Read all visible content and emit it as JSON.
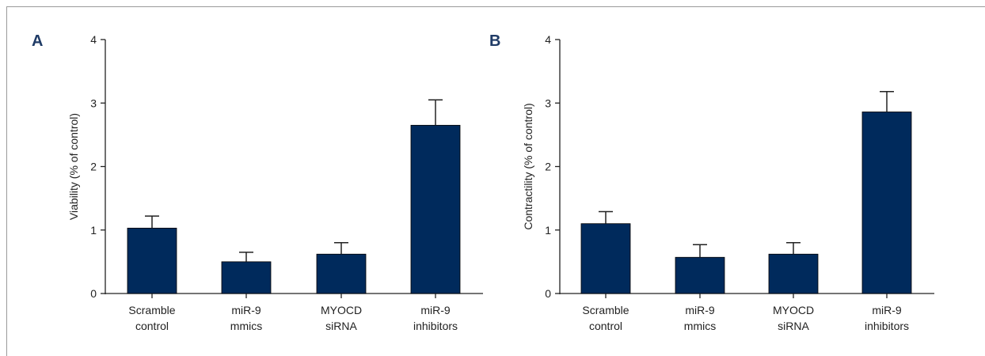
{
  "colors": {
    "bar": "#002a5c",
    "axis": "#222222",
    "panel_letter": "#1f3b66"
  },
  "chart_data": [
    {
      "type": "bar",
      "panel": "A",
      "ylabel": "Viability (% of control)",
      "ylim": [
        0,
        4
      ],
      "yticks": [
        "0",
        "1",
        "2",
        "3",
        "4"
      ],
      "categories": [
        [
          "Scramble",
          "control"
        ],
        [
          "miR-9",
          "mmics"
        ],
        [
          "MYOCD",
          "siRNA"
        ],
        [
          "miR-9",
          "inhibitors"
        ]
      ],
      "values": [
        1.03,
        0.5,
        0.62,
        2.65
      ],
      "errors": [
        0.19,
        0.15,
        0.18,
        0.4
      ]
    },
    {
      "type": "bar",
      "panel": "B",
      "ylabel": "Contractility (% of control)",
      "ylim": [
        0,
        4
      ],
      "yticks": [
        "0",
        "1",
        "2",
        "3",
        "4"
      ],
      "categories": [
        [
          "Scramble",
          "control"
        ],
        [
          "miR-9",
          "mmics"
        ],
        [
          "MYOCD",
          "siRNA"
        ],
        [
          "miR-9",
          "inhibitors"
        ]
      ],
      "values": [
        1.1,
        0.57,
        0.62,
        2.86
      ],
      "errors": [
        0.19,
        0.2,
        0.18,
        0.32
      ]
    }
  ]
}
